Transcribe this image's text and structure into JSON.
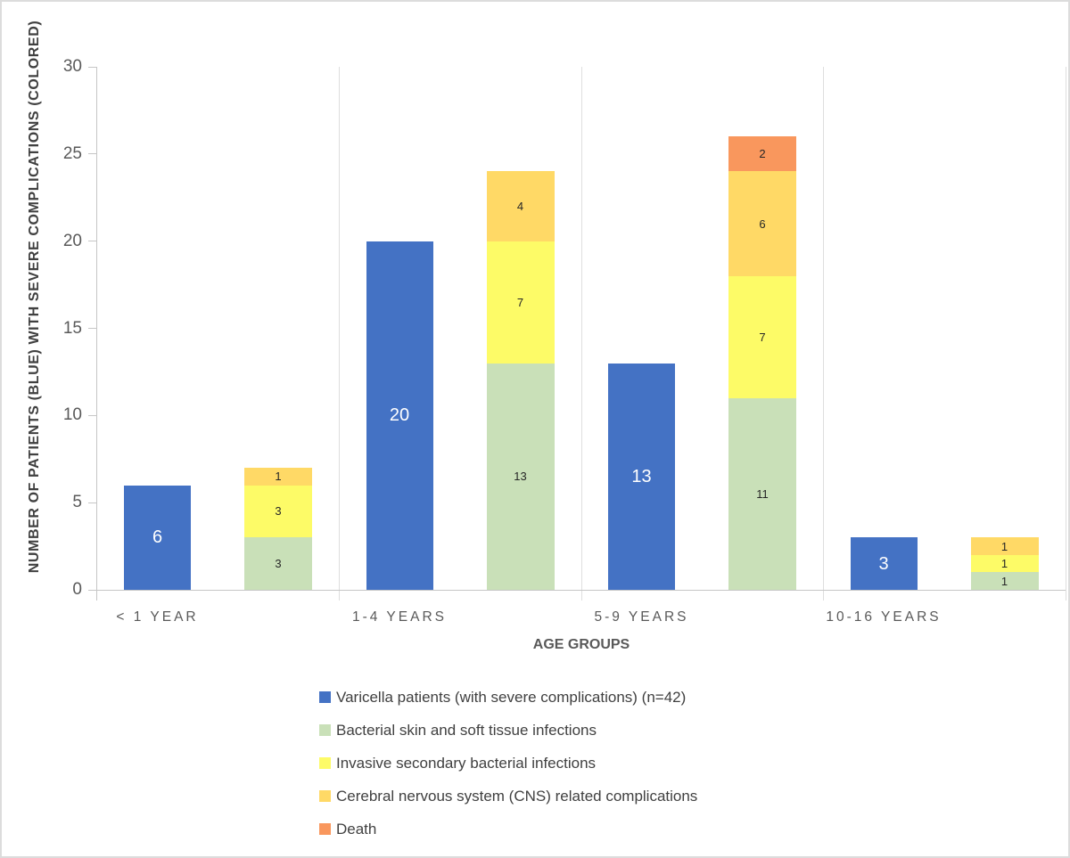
{
  "chart_data": {
    "type": "bar",
    "subtype": "per-category pair: total bar + stacked complications bar",
    "title": "",
    "xlabel": "AGE GROUPS",
    "ylabel": "NUMBER OF PATIENTS (BLUE) WITH SEVERE COMPLICATIONS (COLORED)",
    "categories": [
      "< 1 YEAR",
      "1-4 YEARS",
      "5-9 YEARS",
      "10-16 YEARS"
    ],
    "ylim": [
      0,
      30
    ],
    "y_ticks": [
      0,
      5,
      10,
      15,
      20,
      25,
      30
    ],
    "grid": "vertical category separator lines only, no horizontal gridlines",
    "legend_position": "bottom-left",
    "total_series": {
      "name": "Varicella patients (with severe complications) (n=42)",
      "color": "#4472C4",
      "label_color": "#FFFFFF",
      "values": [
        6,
        20,
        13,
        3
      ]
    },
    "stacked_series": [
      {
        "name": "Bacterial skin and soft tissue infections",
        "color": "#C9E0B8",
        "values": [
          3,
          13,
          11,
          1
        ]
      },
      {
        "name": "Invasive secondary bacterial infections",
        "color": "#FDFB67",
        "values": [
          3,
          7,
          7,
          1
        ]
      },
      {
        "name": "Cerebral nervous system (CNS) related complications",
        "color": "#FFD966",
        "values": [
          1,
          4,
          6,
          1
        ]
      },
      {
        "name": "Death",
        "color": "#F9975D",
        "values": [
          0,
          0,
          2,
          0
        ]
      }
    ],
    "stacked_totals": [
      7,
      24,
      26,
      3
    ]
  }
}
